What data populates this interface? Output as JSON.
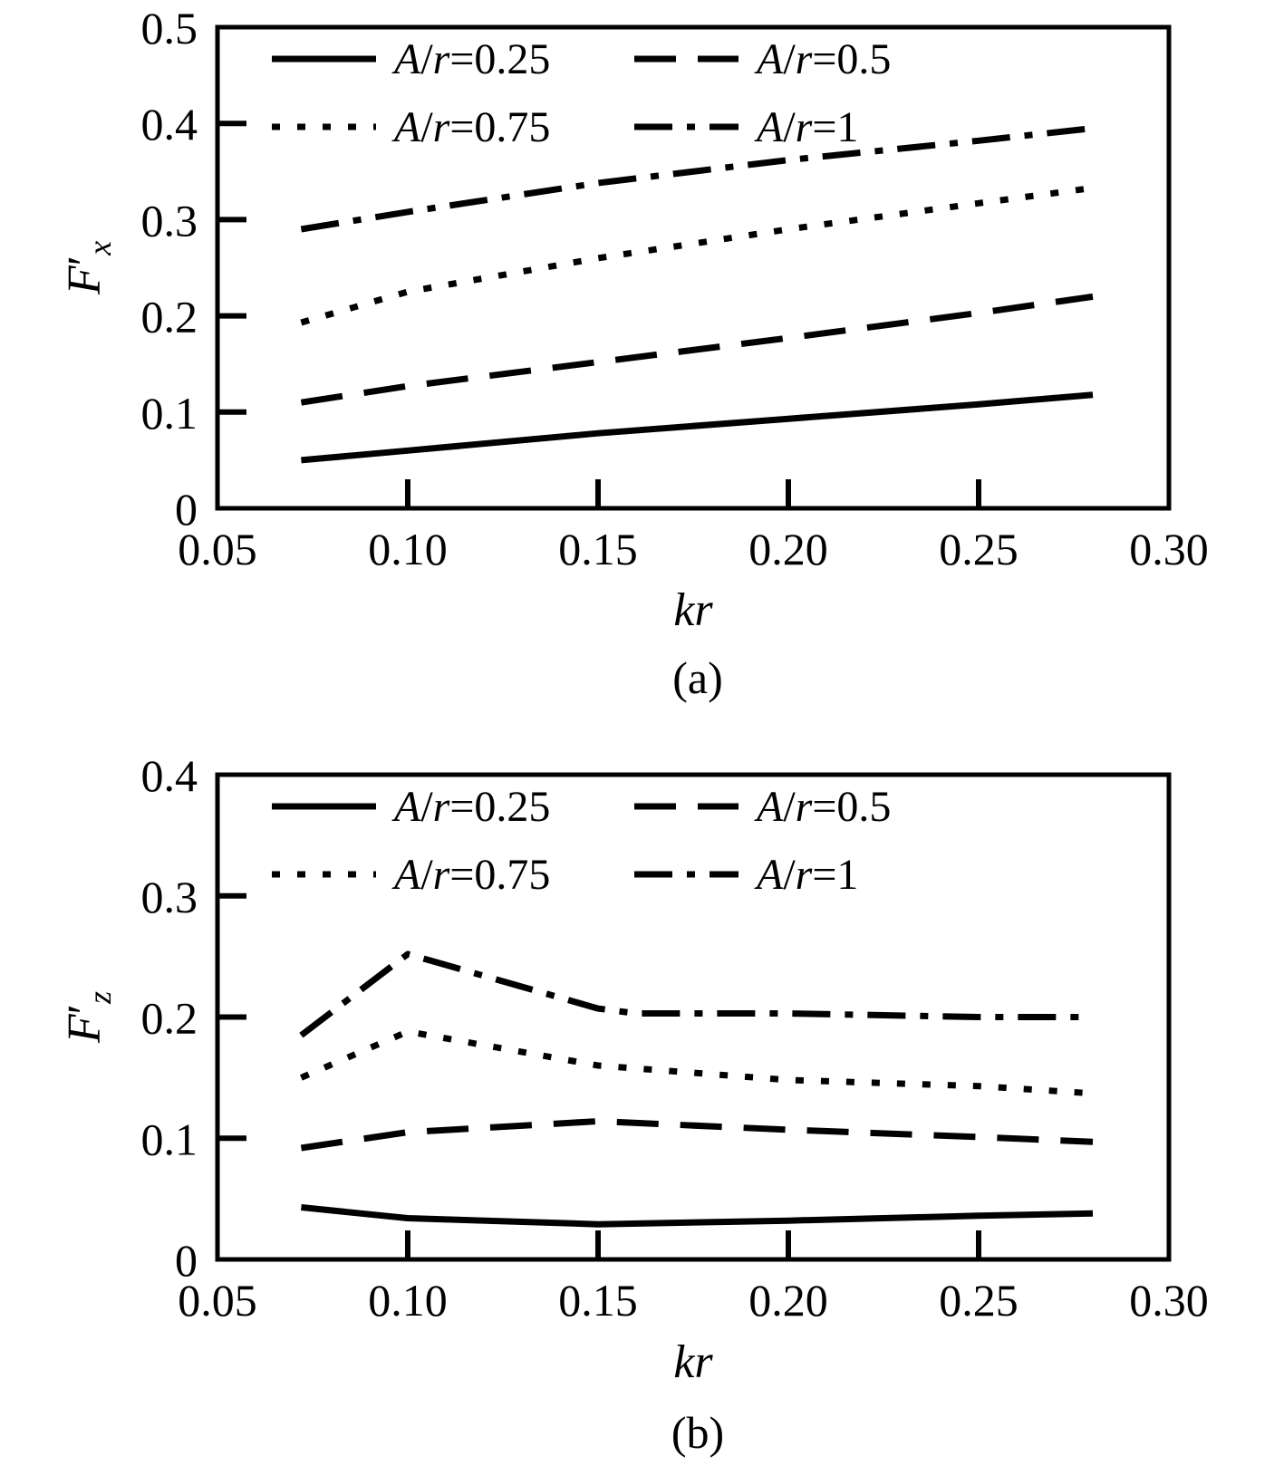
{
  "chart_data": [
    {
      "type": "line",
      "caption": "(a)",
      "xlabel": "kr",
      "ylabel": {
        "base": "F",
        "prime": "′",
        "sub": "x"
      },
      "xlim": [
        0.05,
        0.3
      ],
      "ylim": [
        0,
        0.5
      ],
      "xticks": [
        "0.05",
        "0.10",
        "0.15",
        "0.20",
        "0.25",
        "0.30"
      ],
      "yticks": [
        "0",
        "0.1",
        "0.2",
        "0.3",
        "0.4",
        "0.5"
      ],
      "legend_placement": "top",
      "series": [
        {
          "name": "A/r=0.25",
          "style": "solid",
          "x": [
            0.072,
            0.1,
            0.15,
            0.2,
            0.25,
            0.28
          ],
          "y": [
            0.05,
            0.06,
            0.078,
            0.093,
            0.108,
            0.118
          ]
        },
        {
          "name": "A/r=0.5",
          "style": "dashed",
          "x": [
            0.072,
            0.1,
            0.15,
            0.2,
            0.25,
            0.28
          ],
          "y": [
            0.11,
            0.127,
            0.152,
            0.177,
            0.203,
            0.22
          ]
        },
        {
          "name": "A/r=0.75",
          "style": "dotted",
          "x": [
            0.072,
            0.1,
            0.15,
            0.2,
            0.25,
            0.28
          ],
          "y": [
            0.193,
            0.225,
            0.26,
            0.29,
            0.317,
            0.333
          ]
        },
        {
          "name": "A/r=1",
          "style": "dashdot",
          "x": [
            0.072,
            0.1,
            0.15,
            0.2,
            0.25,
            0.28
          ],
          "y": [
            0.29,
            0.308,
            0.338,
            0.362,
            0.382,
            0.395
          ]
        }
      ]
    },
    {
      "type": "line",
      "caption": "(b)",
      "xlabel": "kr",
      "ylabel": {
        "base": "F",
        "prime": "′",
        "sub": "z"
      },
      "xlim": [
        0.05,
        0.3
      ],
      "ylim": [
        0,
        0.4
      ],
      "xticks": [
        "0.05",
        "0.10",
        "0.15",
        "0.20",
        "0.25",
        "0.30"
      ],
      "yticks": [
        "0",
        "0.1",
        "0.2",
        "0.3",
        "0.4"
      ],
      "legend_placement": "top",
      "series": [
        {
          "name": "A/r=0.25",
          "style": "solid",
          "x": [
            0.072,
            0.1,
            0.15,
            0.2,
            0.25,
            0.28
          ],
          "y": [
            0.043,
            0.034,
            0.029,
            0.032,
            0.036,
            0.038
          ]
        },
        {
          "name": "A/r=0.5",
          "style": "dashed",
          "x": [
            0.072,
            0.1,
            0.15,
            0.2,
            0.25,
            0.28
          ],
          "y": [
            0.092,
            0.105,
            0.114,
            0.107,
            0.101,
            0.097
          ]
        },
        {
          "name": "A/r=0.75",
          "style": "dotted",
          "x": [
            0.072,
            0.1,
            0.15,
            0.2,
            0.25,
            0.28
          ],
          "y": [
            0.15,
            0.188,
            0.16,
            0.148,
            0.143,
            0.137
          ]
        },
        {
          "name": "A/r=1",
          "style": "dashdot",
          "x": [
            0.072,
            0.1,
            0.15,
            0.16,
            0.2,
            0.25,
            0.28
          ],
          "y": [
            0.185,
            0.252,
            0.207,
            0.203,
            0.203,
            0.2,
            0.2
          ]
        }
      ]
    }
  ]
}
